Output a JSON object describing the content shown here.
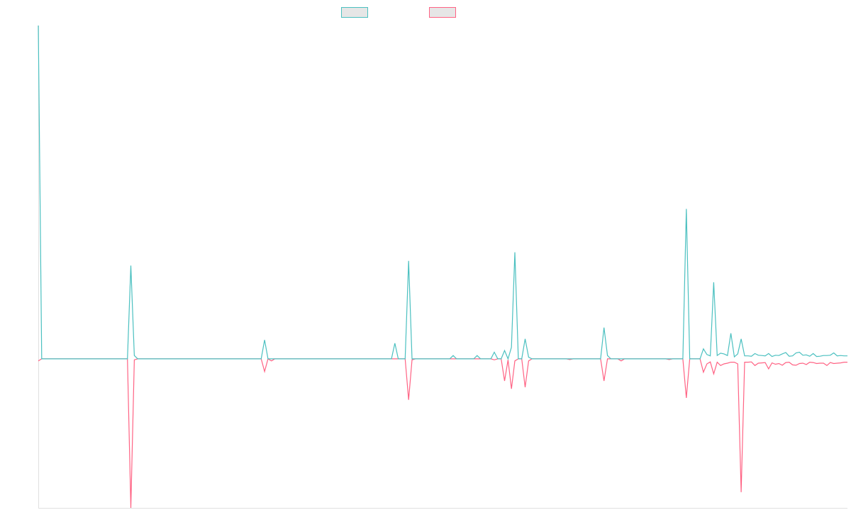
{
  "chart_data": {
    "type": "line",
    "title": "",
    "xlabel": "",
    "ylabel": "",
    "ylim": [
      -44.7,
      100
    ],
    "grid": false,
    "legend_position": "top",
    "point_count": 237,
    "series": [
      {
        "name": "",
        "color": "#4bc0c0",
        "values": [
          100,
          0,
          0,
          0,
          0,
          0,
          0,
          0,
          0,
          0,
          0,
          0,
          0,
          0,
          0,
          0,
          0,
          0,
          0,
          0,
          0,
          0,
          0,
          0,
          0,
          0,
          0,
          28,
          1,
          0,
          0,
          0,
          0,
          0,
          0,
          0,
          0,
          0,
          0,
          0,
          0,
          0,
          0,
          0,
          0,
          0,
          0,
          0,
          0,
          0,
          0,
          0,
          0,
          0,
          0,
          0,
          0,
          0,
          0,
          0,
          0,
          0,
          0,
          0,
          0,
          0,
          5.7,
          0,
          0,
          0,
          0,
          0,
          0,
          0,
          0,
          0,
          0,
          0,
          0,
          0,
          0,
          0,
          0,
          0,
          0,
          0,
          0,
          0,
          0,
          0,
          0,
          0,
          0,
          0,
          0,
          0,
          0,
          0,
          0,
          0,
          0,
          0,
          0,
          0,
          4.7,
          0,
          0,
          0,
          29.4,
          0,
          0,
          0,
          0,
          0,
          0,
          0,
          0,
          0,
          0,
          0,
          0,
          1,
          0,
          0,
          0,
          0,
          0,
          0,
          1,
          0,
          0,
          0,
          0,
          2,
          0,
          0,
          2.5,
          0,
          3.5,
          32,
          0,
          0,
          6,
          0.5,
          0,
          0,
          0,
          0,
          0,
          0,
          0,
          0,
          0,
          0,
          0,
          0,
          0,
          0,
          0,
          0,
          0,
          0,
          0,
          0,
          0,
          9.4,
          1,
          0,
          0,
          0,
          0,
          0,
          0,
          0,
          0,
          0,
          0,
          0,
          0,
          0,
          0,
          0,
          0,
          0,
          0,
          0,
          0,
          0,
          0,
          45,
          0,
          0,
          0,
          0,
          3,
          1.3,
          0.9,
          23,
          1,
          1.7,
          1.5,
          1,
          7.7,
          0.6,
          1.5,
          6,
          0.9,
          0.9,
          0.8,
          1.6,
          1.1,
          1.0,
          0.9,
          1.6,
          0.7,
          1.1,
          1.0,
          1.5,
          1.9,
          0.8,
          0.9,
          1.8,
          2.0,
          1.1,
          1.2,
          0.8,
          1.6,
          0.7,
          0.8,
          1.0,
          1.0,
          1.1,
          1.8,
          0.9,
          1.0,
          0.9,
          0.9
        ]
      },
      {
        "name": "",
        "color": "#ff6384",
        "values": [
          -0.6,
          0,
          0,
          0,
          0,
          0,
          0,
          0,
          0,
          0,
          0,
          0,
          0,
          0,
          0,
          0,
          0,
          0,
          0,
          0,
          0,
          0,
          0,
          0,
          0,
          0,
          0,
          -44.7,
          -0.3,
          0,
          0,
          0,
          0,
          0,
          0,
          0,
          0,
          0,
          0,
          0,
          0,
          0,
          0,
          0,
          0,
          0,
          0,
          0,
          0,
          0,
          0,
          0,
          0,
          0,
          0,
          0,
          0,
          0,
          0,
          0,
          0,
          0,
          0,
          0,
          0,
          0,
          -3.8,
          0,
          -0.6,
          0,
          0,
          0,
          0,
          0,
          0,
          0,
          0,
          0,
          0,
          0,
          0,
          0,
          0,
          0,
          0,
          0,
          0,
          0,
          0,
          0,
          0,
          0,
          0,
          0,
          0,
          0,
          0,
          0,
          0,
          0,
          0,
          0,
          0,
          0,
          0,
          0,
          0,
          0,
          -12.3,
          -0.3,
          0,
          0,
          0,
          0,
          0,
          0,
          0,
          0,
          0,
          0,
          0,
          0,
          0,
          0,
          0,
          0,
          0,
          0,
          0,
          0,
          0,
          0,
          0,
          -0.3,
          0,
          0,
          -6.6,
          -0.3,
          -9,
          -0.6,
          0,
          0,
          -8.5,
          -0.6,
          0,
          0,
          0,
          0,
          0,
          0,
          0,
          0,
          0,
          0,
          0,
          -0.2,
          0,
          0,
          0,
          0,
          0,
          0,
          0,
          0,
          0,
          -6.6,
          0,
          0,
          0,
          0,
          -0.6,
          0,
          0,
          0,
          0,
          0,
          0,
          0,
          0,
          0,
          0,
          0,
          0,
          0,
          -0.2,
          0,
          0,
          0,
          0,
          -11.7,
          0,
          0,
          0,
          0,
          -4,
          -1.5,
          -0.9,
          -4.5,
          -1,
          -2,
          -1.5,
          -1.3,
          -1,
          -1,
          -1.5,
          -40,
          -1,
          -1.0,
          -0.9,
          -2.0,
          -1.3,
          -1.2,
          -1.1,
          -3.0,
          -1.2,
          -1.6,
          -1.4,
          -1.9,
          -1.1,
          -1.0,
          -1.8,
          -1.9,
          -1.4,
          -1.3,
          -1.7,
          -1.0,
          -1.1,
          -1.4,
          -1.3,
          -1.3,
          -2.0,
          -1.1,
          -1.4,
          -1.3,
          -1.2,
          -1.0,
          -1.0
        ]
      }
    ]
  }
}
